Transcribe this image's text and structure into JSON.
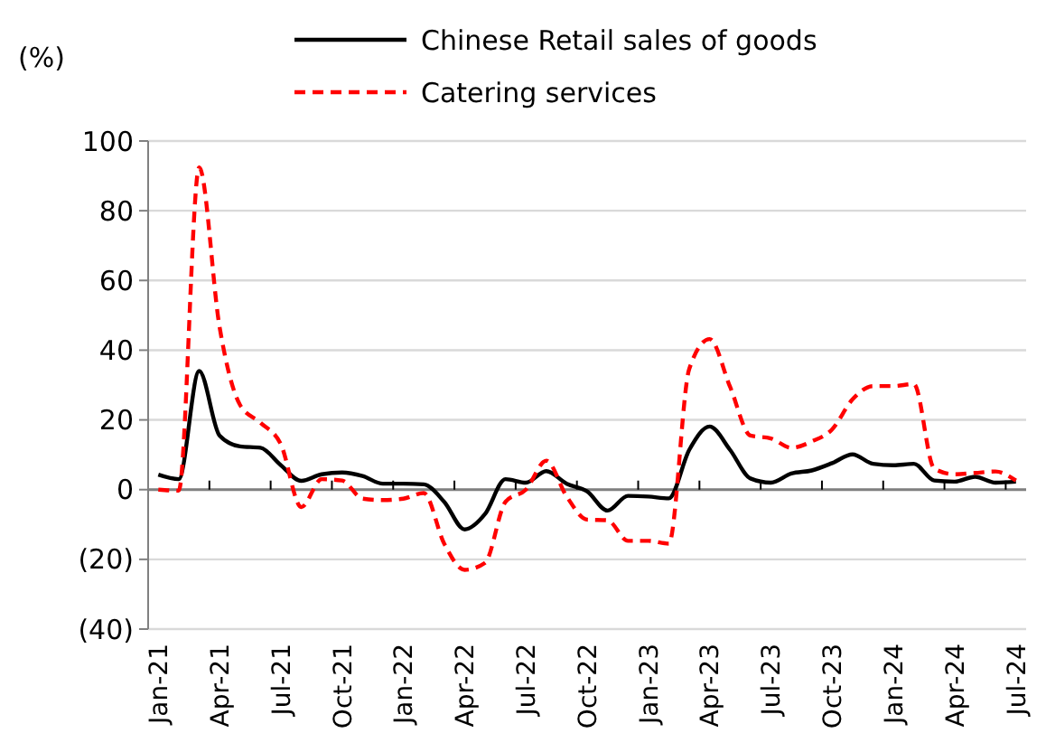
{
  "chart_data": {
    "type": "line",
    "ylabel": "(%)",
    "categories": [
      "Jan-21",
      null,
      null,
      "Apr-21",
      null,
      null,
      "Jul-21",
      null,
      null,
      "Oct-21",
      null,
      null,
      "Jan-22",
      null,
      null,
      "Apr-22",
      null,
      null,
      "Jul-22",
      null,
      null,
      "Oct-22",
      null,
      null,
      "Jan-23",
      null,
      null,
      "Apr-23",
      null,
      null,
      "Jul-23",
      null,
      null,
      "Oct-23",
      null,
      null,
      "Jan-24",
      null,
      null,
      "Apr-24",
      null,
      null,
      "Jul-24"
    ],
    "series": [
      {
        "name": "Chinese Retail sales of goods",
        "color": "#000000",
        "line_style": "solid",
        "values": [
          4.3,
          3,
          34,
          15.5,
          12.4,
          12,
          7,
          2.5,
          4.4,
          4.9,
          3.9,
          1.7,
          1.7,
          1.5,
          -3.5,
          -11.4,
          -7,
          3,
          2,
          5.3,
          1.7,
          -0.5,
          -6,
          -1.8,
          -2,
          -2.5,
          11.4,
          18.1,
          11.4,
          3.2,
          2,
          4.6,
          5.5,
          7.6,
          10.1,
          7.4,
          7,
          7.4,
          2.6,
          2.3,
          3.7,
          2,
          2.3
        ]
      },
      {
        "name": "Catering services",
        "color": "#ff0000",
        "line_style": "dashed",
        "values": [
          0,
          -0.3,
          92.4,
          46.6,
          24.3,
          19.2,
          13,
          -5,
          3,
          2.6,
          -2.6,
          -3,
          -2.6,
          -1,
          -15.5,
          -23,
          -21,
          -3.5,
          0,
          8.3,
          -2,
          -8.6,
          -8.8,
          -14.7,
          -14.7,
          -15.5,
          34.6,
          43.2,
          29.5,
          15.5,
          14.7,
          12,
          13.8,
          17.3,
          25.9,
          29.7,
          29.7,
          30.3,
          6,
          4.4,
          4.8,
          5.2,
          2.6
        ]
      }
    ],
    "ylim": [
      -40,
      100
    ],
    "yticks": [
      {
        "value": -40,
        "label": "(40)"
      },
      {
        "value": -20,
        "label": "(20)"
      },
      0,
      20,
      40,
      60,
      80,
      100
    ],
    "grid": "y",
    "legend": "top",
    "marker": "none"
  }
}
